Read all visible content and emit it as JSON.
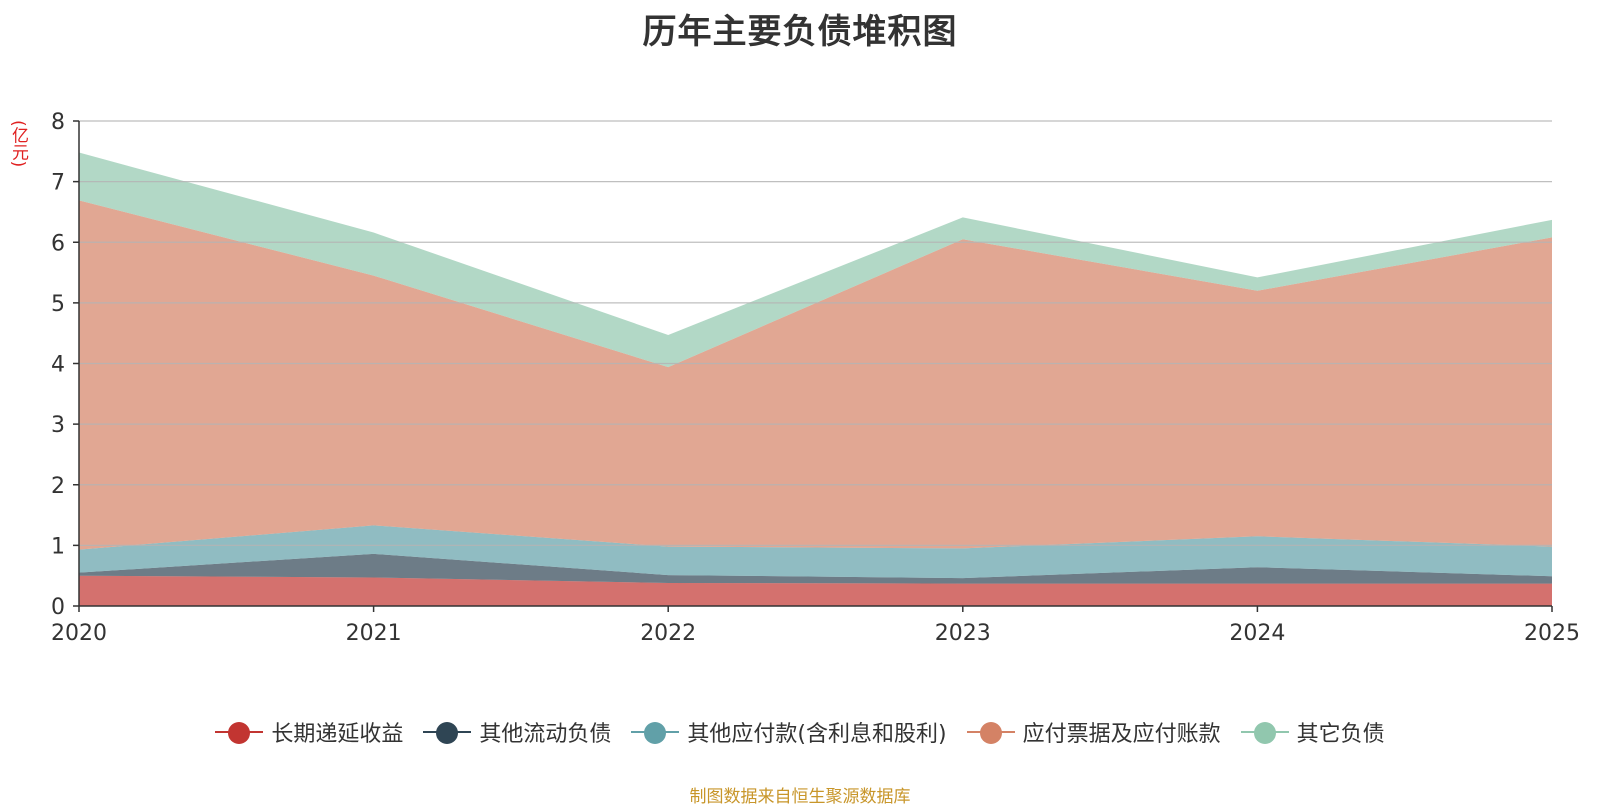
{
  "chart_data": {
    "type": "area",
    "stacked": true,
    "title": "历年主要负债堆积图",
    "ylabel": "(亿元)",
    "ylim": [
      0,
      8
    ],
    "yticks": [
      0,
      1,
      2,
      3,
      4,
      5,
      6,
      7,
      8
    ],
    "categories": [
      "2020",
      "2021",
      "2022",
      "2023",
      "2024",
      "2025"
    ],
    "series": [
      {
        "name": "长期递延收益",
        "color": "#c23531",
        "values": [
          0.5,
          0.47,
          0.38,
          0.37,
          0.37,
          0.37
        ]
      },
      {
        "name": "其他流动负债",
        "color": "#2f4554",
        "values": [
          0.05,
          0.39,
          0.13,
          0.09,
          0.27,
          0.12
        ]
      },
      {
        "name": "其他应付款(含利息和股利)",
        "color": "#61a0a8",
        "values": [
          0.38,
          0.47,
          0.47,
          0.49,
          0.51,
          0.49
        ]
      },
      {
        "name": "应付票据及应付账款",
        "color": "#d48265",
        "values": [
          5.76,
          4.12,
          2.96,
          5.1,
          4.05,
          5.1
        ]
      },
      {
        "name": "其它负债",
        "color": "#91c7ae",
        "values": [
          0.79,
          0.71,
          0.53,
          0.36,
          0.22,
          0.29
        ]
      }
    ],
    "source": "制图数据来自恒生聚源数据库"
  }
}
